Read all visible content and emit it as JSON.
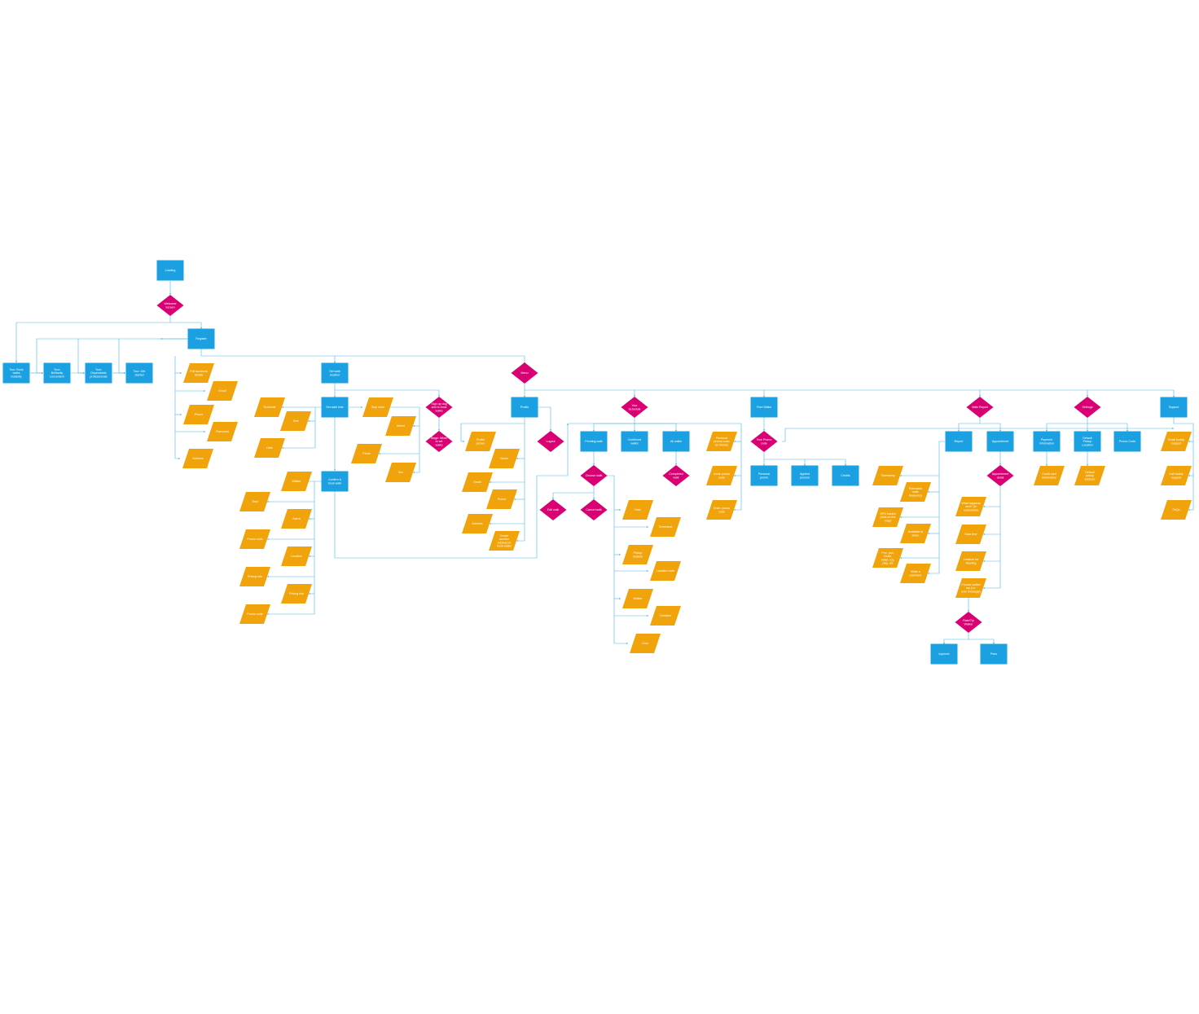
{
  "diagram": {
    "colors": {
      "process": "#1ba1e2",
      "decision": "#d80073",
      "data": "#f0a30a",
      "connector": "#4cb4e6",
      "text": "#ffffff"
    },
    "node_labels": {
      "loading": "Loading",
      "welcome": "Welcome Screen",
      "register": "Register",
      "tour1": "Tour: Book walks instantly",
      "tour2": "Tour: Brilliantly convenient",
      "tour3": "Tour: Dependable professionals",
      "tour4": "Tour: Get started",
      "reg_fb": "Pull facebook details",
      "reg_email": "Email",
      "reg_phone": "Phone",
      "reg_password": "Password",
      "reg_address": "Address",
      "set_walk_location": "Set walk location",
      "set_walk_time": "Set walk time",
      "swt_schedule": "Schedule",
      "swt_time": "Time",
      "swt_date": "Date",
      "stop_order": "Stop order",
      "stop_breed": "Breed",
      "stop_photo": "Photo",
      "stop_sex": "Sex",
      "sign_up_dog": "Sign up dog and to book walks",
      "stage_when": "Stage: When to set walks",
      "confirm_book": "Confirm & book walk",
      "cb_walker": "Walker",
      "cb_time": "Time",
      "cb_alarm": "Alarm",
      "cb_promo": "Promo code",
      "cb_location": "Location",
      "cb_pricing": "Pricing info",
      "cb_pricing2": "Pricing info",
      "cb_promo2": "Promo code",
      "menu": "Menu",
      "profile": "Profile",
      "pr_picture": "Profile picture",
      "pr_name": "Name",
      "pr_email": "Email",
      "pr_phone": "Phone",
      "pr_address": "Address",
      "pr_another": "Create another address to book walks",
      "logout": "Logout",
      "your_schedule": "Your Schedule",
      "pending": "Pending walk",
      "confirmed": "Confirmed walks",
      "all_walks": "All walks",
      "choose_walk": "Choose walk",
      "completed_walk": "Completed walk",
      "edit_walk": "Edit walk",
      "cancel_walk": "Cancel walk",
      "cw_date": "Date",
      "cw_timeframe": "Timeframe",
      "cw_pickup": "Pickup location",
      "cw_loccode": "Location code",
      "cw_walker": "Walker",
      "cw_duration": "Duration",
      "cw_cost": "Cost",
      "ys_personal": "Personal promo code for friends",
      "ys_invite": "Invite promo code",
      "ys_enter": "Enter promo code",
      "free_walks": "Free Walks",
      "your_promo": "Your Promo code",
      "fw_personal": "Personal promo",
      "fw_applied": "Applied promos",
      "fw_credits": "Credits",
      "walk_report": "Walk Report",
      "report": "Report",
      "wr_timestamp": "Timestamp",
      "wr_estimated": "Estimated walk frequency",
      "wr_gps": "GPS tracker (dots on the map)",
      "wr_available": "Available to share",
      "wr_pee": "Pee, poo, treats, water, toy, play, etc",
      "wr_note": "Write a comment",
      "appointment": "Appointment",
      "appt_detail": "Appointment detail",
      "ap_what": "What happens next? (to customers)",
      "ap_start": "Start time",
      "ap_location": "Location for Meeting",
      "ap_choose": "Choose walker rep (i.e. over message)",
      "rate_walker": "Rate/Tip Walker",
      "approve": "Approve",
      "pass": "Pass",
      "settings": "Settings",
      "payment_info": "Payment information",
      "default_pickup": "Default Pickup Location",
      "promo_code": "Promo Code",
      "set_credit": "Credit card information",
      "set_address": "Default pickup address",
      "support": "Support",
      "sup_email": "Email buddy support",
      "sup_call": "Call buddy support",
      "sup_faqs": "FAQs"
    }
  }
}
